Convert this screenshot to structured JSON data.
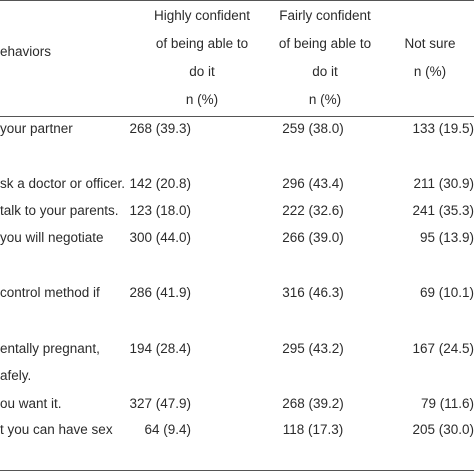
{
  "table": {
    "header": {
      "behavior_label": "ehaviors",
      "columns": [
        {
          "lines": [
            "Highly confident",
            "of being able to",
            "do it",
            "n (%)"
          ]
        },
        {
          "lines": [
            "Fairly confident",
            "of being able to",
            "do it",
            "n (%)"
          ]
        },
        {
          "lines": [
            "Not sure",
            "n (%)"
          ]
        }
      ]
    },
    "rows": [
      {
        "label_lines": [
          "your partner"
        ],
        "values": [
          "268 (39.3)",
          "259 (38.0)",
          "133 (19.5)"
        ]
      },
      {
        "label_lines": [
          "sk a doctor or officer."
        ],
        "values": [
          "142 (20.8)",
          "296 (43.4)",
          "211 (30.9)"
        ]
      },
      {
        "label_lines": [
          "talk to your parents."
        ],
        "values": [
          "123 (18.0)",
          "222 (32.6)",
          "241 (35.3)"
        ]
      },
      {
        "label_lines": [
          "you will negotiate"
        ],
        "values": [
          "300 (44.0)",
          "266 (39.0)",
          "95 (13.9)"
        ]
      },
      {
        "label_lines": [
          "control method if"
        ],
        "values": [
          "286 (41.9)",
          "316 (46.3)",
          "69 (10.1)"
        ]
      },
      {
        "label_lines": [
          "entally pregnant,",
          "afely."
        ],
        "values": [
          "194 (28.4)",
          "295 (43.2)",
          "167 (24.5)"
        ]
      },
      {
        "label_lines": [
          "ou want it."
        ],
        "values": [
          "327 (47.9)",
          "268 (39.2)",
          "79 (11.6)"
        ]
      },
      {
        "label_lines": [
          "t you can have sex"
        ],
        "values": [
          "64 (9.4)",
          "118 (17.3)",
          "205 (30.0)"
        ]
      }
    ]
  }
}
